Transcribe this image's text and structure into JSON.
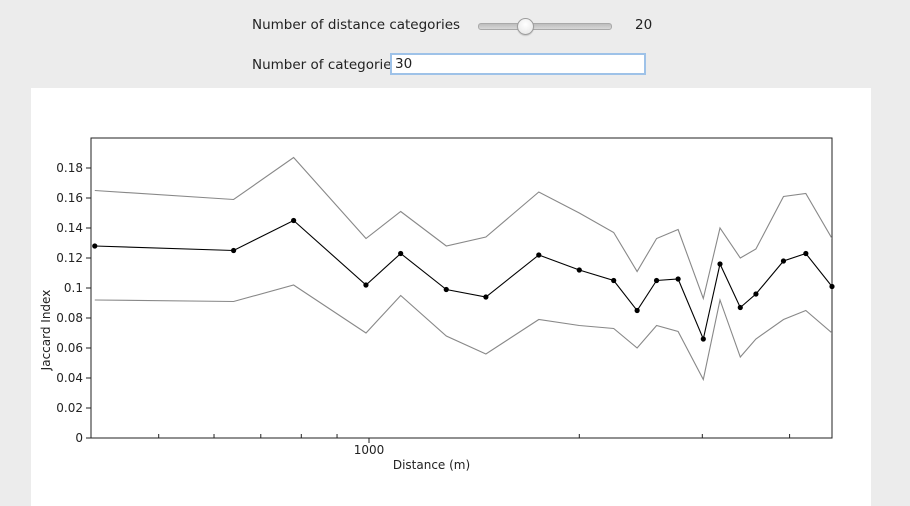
{
  "controls": {
    "distance_categories": {
      "label": "Number of distance categories",
      "value": "20",
      "min": 0,
      "max": 60,
      "position": 20
    },
    "categories": {
      "label": "Number of categories",
      "value": "30"
    }
  },
  "colors": {
    "mean_line": "#000000",
    "bound_lines": "#888888",
    "axis": "#222222"
  },
  "chart_data": {
    "type": "line",
    "xlabel": "Distance (m)",
    "ylabel": "Jaccard Index",
    "x_scale": "log",
    "xlim": [
      400,
      4600
    ],
    "ylim": [
      0,
      0.2
    ],
    "x_ticks": [
      {
        "value": 1000,
        "label": "1000"
      }
    ],
    "x_minor_ticks": [
      500,
      600,
      700,
      800,
      900,
      2000,
      3000,
      4000
    ],
    "y_ticks": [
      {
        "value": 0,
        "label": "0"
      },
      {
        "value": 0.02,
        "label": "0.02"
      },
      {
        "value": 0.04,
        "label": "0.04"
      },
      {
        "value": 0.06,
        "label": "0.06"
      },
      {
        "value": 0.08,
        "label": "0.08"
      },
      {
        "value": 0.1,
        "label": "0.1"
      },
      {
        "value": 0.12,
        "label": "0.12"
      },
      {
        "value": 0.14,
        "label": "0.14"
      },
      {
        "value": 0.16,
        "label": "0.16"
      },
      {
        "value": 0.18,
        "label": "0.18"
      }
    ],
    "grid": false,
    "legend": "none",
    "x": [
      405,
      640,
      780,
      990,
      1110,
      1290,
      1470,
      1750,
      2000,
      2240,
      2420,
      2580,
      2770,
      3010,
      3180,
      3400,
      3580,
      3920,
      4220,
      4600
    ],
    "series": [
      {
        "role": "upper",
        "values": [
          0.165,
          0.159,
          0.187,
          0.133,
          0.151,
          0.128,
          0.134,
          0.164,
          0.15,
          0.137,
          0.111,
          0.133,
          0.139,
          0.093,
          0.14,
          0.12,
          0.126,
          0.161,
          0.163,
          0.133
        ]
      },
      {
        "role": "mean",
        "values": [
          0.128,
          0.125,
          0.145,
          0.102,
          0.123,
          0.099,
          0.094,
          0.122,
          0.112,
          0.105,
          0.085,
          0.105,
          0.106,
          0.066,
          0.116,
          0.087,
          0.096,
          0.118,
          0.123,
          0.101
        ]
      },
      {
        "role": "lower",
        "values": [
          0.092,
          0.091,
          0.102,
          0.07,
          0.095,
          0.068,
          0.056,
          0.079,
          0.075,
          0.073,
          0.06,
          0.075,
          0.071,
          0.039,
          0.092,
          0.054,
          0.066,
          0.079,
          0.085,
          0.07
        ]
      }
    ]
  }
}
